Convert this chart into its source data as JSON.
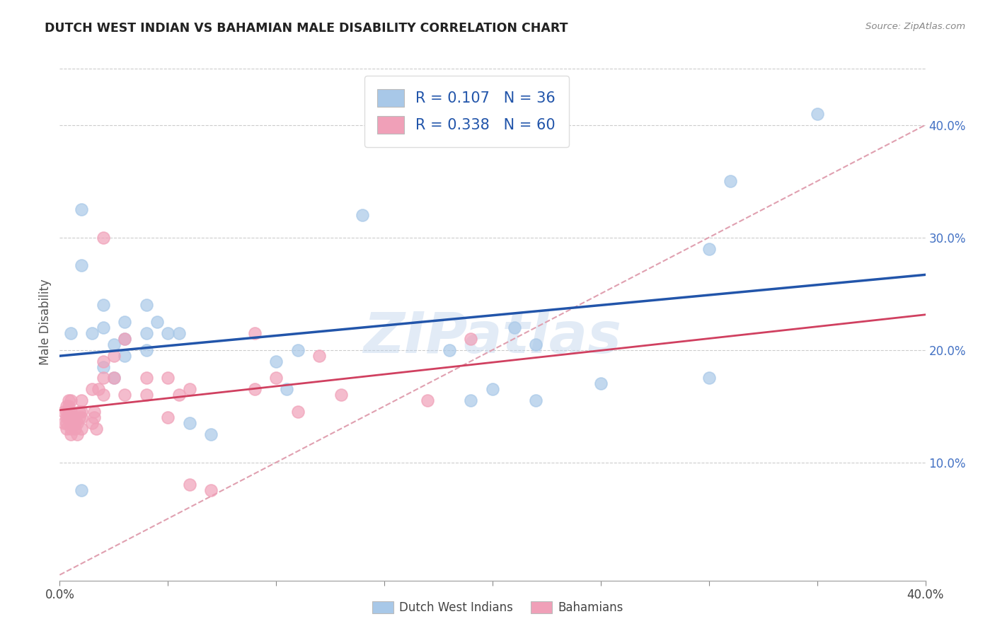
{
  "title": "DUTCH WEST INDIAN VS BAHAMIAN MALE DISABILITY CORRELATION CHART",
  "source": "Source: ZipAtlas.com",
  "ylabel": "Male Disability",
  "ylabel_right_ticks": [
    "10.0%",
    "20.0%",
    "30.0%",
    "40.0%"
  ],
  "ylabel_right_vals": [
    0.1,
    0.2,
    0.3,
    0.4
  ],
  "xlim": [
    0.0,
    0.4
  ],
  "ylim": [
    -0.005,
    0.455
  ],
  "watermark": "ZIPatlas",
  "blue_color": "#A8C8E8",
  "pink_color": "#F0A0B8",
  "blue_line_color": "#2255AA",
  "pink_line_color": "#D04060",
  "diag_line_color": "#E0A0B0",
  "grid_color": "#CCCCCC",
  "background_color": "#FFFFFF",
  "dutch_x": [
    0.005,
    0.01,
    0.015,
    0.02,
    0.02,
    0.02,
    0.025,
    0.025,
    0.03,
    0.03,
    0.03,
    0.04,
    0.04,
    0.04,
    0.045,
    0.05,
    0.055,
    0.06,
    0.07,
    0.1,
    0.105,
    0.11,
    0.14,
    0.18,
    0.19,
    0.2,
    0.21,
    0.22,
    0.22,
    0.25,
    0.3,
    0.3,
    0.31,
    0.35,
    0.01,
    0.01
  ],
  "dutch_y": [
    0.215,
    0.275,
    0.215,
    0.24,
    0.22,
    0.185,
    0.175,
    0.205,
    0.225,
    0.21,
    0.195,
    0.24,
    0.215,
    0.2,
    0.225,
    0.215,
    0.215,
    0.135,
    0.125,
    0.19,
    0.165,
    0.2,
    0.32,
    0.2,
    0.155,
    0.165,
    0.22,
    0.155,
    0.205,
    0.17,
    0.29,
    0.175,
    0.35,
    0.41,
    0.075,
    0.325
  ],
  "bah_x": [
    0.002,
    0.002,
    0.003,
    0.003,
    0.003,
    0.003,
    0.003,
    0.004,
    0.004,
    0.004,
    0.004,
    0.005,
    0.005,
    0.005,
    0.005,
    0.005,
    0.005,
    0.006,
    0.006,
    0.007,
    0.007,
    0.007,
    0.008,
    0.008,
    0.009,
    0.009,
    0.01,
    0.01,
    0.01,
    0.01,
    0.015,
    0.015,
    0.016,
    0.016,
    0.017,
    0.018,
    0.02,
    0.02,
    0.02,
    0.02,
    0.025,
    0.025,
    0.03,
    0.03,
    0.04,
    0.04,
    0.05,
    0.05,
    0.055,
    0.06,
    0.06,
    0.07,
    0.09,
    0.09,
    0.1,
    0.11,
    0.12,
    0.13,
    0.17,
    0.19
  ],
  "bah_y": [
    0.135,
    0.145,
    0.13,
    0.135,
    0.14,
    0.145,
    0.15,
    0.14,
    0.145,
    0.15,
    0.155,
    0.125,
    0.13,
    0.135,
    0.14,
    0.145,
    0.155,
    0.135,
    0.14,
    0.13,
    0.135,
    0.14,
    0.125,
    0.135,
    0.14,
    0.145,
    0.13,
    0.14,
    0.145,
    0.155,
    0.135,
    0.165,
    0.14,
    0.145,
    0.13,
    0.165,
    0.16,
    0.175,
    0.19,
    0.3,
    0.175,
    0.195,
    0.16,
    0.21,
    0.16,
    0.175,
    0.14,
    0.175,
    0.16,
    0.08,
    0.165,
    0.075,
    0.165,
    0.215,
    0.175,
    0.145,
    0.195,
    0.16,
    0.155,
    0.21
  ]
}
